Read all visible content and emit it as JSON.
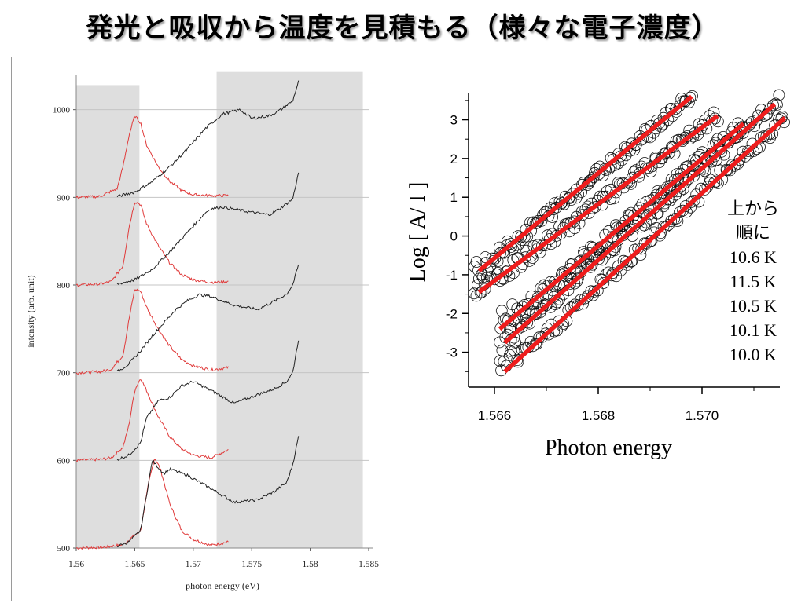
{
  "slide": {
    "title": "発光と吸収から温度を見積もる（様々な電子濃度）"
  },
  "chart_data": [
    {
      "type": "line",
      "xlabel": "photon energy (eV)",
      "ylabel": "intensity (arb. unit)",
      "xlim": [
        1.56,
        1.585
      ],
      "ylim": [
        500,
        1040
      ],
      "xticks": [
        1.56,
        1.565,
        1.57,
        1.575,
        1.58,
        1.585
      ],
      "xtick_labels": [
        "1.56",
        "1.565",
        "1.57",
        "1.575",
        "1.58",
        "1.585"
      ],
      "yticks": [
        500,
        600,
        700,
        800,
        900,
        1000
      ],
      "ytick_labels": [
        "500",
        "600",
        "700",
        "800",
        "900",
        "1000"
      ],
      "grid": "horizontal",
      "shaded_regions": [
        {
          "x": [
            1.56,
            1.5654
          ],
          "y": [
            500,
            1028
          ]
        },
        {
          "x": [
            1.572,
            1.5845
          ],
          "y": [
            500,
            1043
          ]
        }
      ],
      "emission_color": "#e03a3a",
      "absorption_color": "#222222",
      "shade_color": "#dedede",
      "emission_series": [
        {
          "offset": 500,
          "x": [
            1.56,
            1.5625,
            1.564,
            1.5655,
            1.5662,
            1.5667,
            1.5672,
            1.568,
            1.569,
            1.57,
            1.5715,
            1.573
          ],
          "y": [
            500,
            501,
            504,
            520,
            575,
            603,
            590,
            550,
            520,
            510,
            503,
            507
          ]
        },
        {
          "offset": 600,
          "x": [
            1.56,
            1.562,
            1.563,
            1.564,
            1.5645,
            1.565,
            1.5655,
            1.566,
            1.567,
            1.568,
            1.569,
            1.57,
            1.5715,
            1.573
          ],
          "y": [
            600,
            601,
            603,
            615,
            640,
            680,
            694,
            680,
            650,
            627,
            613,
            606,
            603,
            612
          ]
        },
        {
          "offset": 700,
          "x": [
            1.56,
            1.562,
            1.563,
            1.564,
            1.5645,
            1.565,
            1.5655,
            1.566,
            1.567,
            1.568,
            1.569,
            1.57,
            1.5715,
            1.573
          ],
          "y": [
            700,
            701,
            704,
            720,
            760,
            795,
            793,
            775,
            750,
            730,
            715,
            708,
            703,
            706
          ]
        },
        {
          "offset": 800,
          "x": [
            1.56,
            1.562,
            1.563,
            1.564,
            1.5645,
            1.565,
            1.5655,
            1.566,
            1.567,
            1.568,
            1.569,
            1.57,
            1.5715,
            1.573
          ],
          "y": [
            800,
            801,
            804,
            822,
            865,
            895,
            892,
            870,
            845,
            825,
            812,
            806,
            803,
            804
          ]
        },
        {
          "offset": 900,
          "x": [
            1.56,
            1.562,
            1.5635,
            1.564,
            1.5645,
            1.565,
            1.5655,
            1.566,
            1.567,
            1.568,
            1.569,
            1.57,
            1.5715,
            1.573
          ],
          "y": [
            900,
            901,
            910,
            935,
            970,
            993,
            985,
            960,
            935,
            918,
            908,
            903,
            902,
            902
          ]
        }
      ],
      "absorption_series": [
        {
          "offset": 500,
          "x": [
            1.5635,
            1.5645,
            1.5655,
            1.566,
            1.5665,
            1.567,
            1.5675,
            1.568,
            1.5695,
            1.5715,
            1.5735,
            1.5755,
            1.577,
            1.578,
            1.5785,
            1.579
          ],
          "y": [
            502,
            507,
            520,
            560,
            600,
            592,
            585,
            590,
            583,
            568,
            552,
            555,
            565,
            575,
            595,
            627
          ]
        },
        {
          "offset": 600,
          "x": [
            1.5635,
            1.5645,
            1.5655,
            1.566,
            1.567,
            1.568,
            1.569,
            1.57,
            1.5715,
            1.5735,
            1.5755,
            1.577,
            1.578,
            1.5785,
            1.579
          ],
          "y": [
            601,
            606,
            620,
            648,
            668,
            672,
            685,
            690,
            680,
            665,
            675,
            682,
            690,
            700,
            738
          ]
        },
        {
          "offset": 700,
          "x": [
            1.5635,
            1.5645,
            1.5655,
            1.5665,
            1.5675,
            1.5685,
            1.5695,
            1.5705,
            1.5715,
            1.5735,
            1.5755,
            1.577,
            1.578,
            1.5785,
            1.579
          ],
          "y": [
            701,
            710,
            725,
            742,
            757,
            772,
            782,
            789,
            787,
            777,
            772,
            782,
            790,
            800,
            823
          ]
        },
        {
          "offset": 800,
          "x": [
            1.5635,
            1.565,
            1.5665,
            1.568,
            1.5695,
            1.571,
            1.5715,
            1.5725,
            1.5745,
            1.5765,
            1.5775,
            1.5785,
            1.579
          ],
          "y": [
            801,
            806,
            818,
            838,
            860,
            882,
            887,
            889,
            884,
            880,
            888,
            898,
            928
          ]
        },
        {
          "offset": 900,
          "x": [
            1.5635,
            1.565,
            1.5665,
            1.568,
            1.5695,
            1.571,
            1.5725,
            1.574,
            1.575,
            1.5765,
            1.5775,
            1.5785,
            1.579
          ],
          "y": [
            901,
            906,
            918,
            935,
            955,
            978,
            995,
            1000,
            990,
            993,
            1000,
            1010,
            1032
          ]
        }
      ]
    },
    {
      "type": "scatter",
      "xlabel": "Photon energy",
      "ylabel": "Log [ A/ I ]",
      "xlim": [
        1.5655,
        1.5715
      ],
      "ylim": [
        -3.9,
        3.7
      ],
      "xticks": [
        1.566,
        1.568,
        1.57
      ],
      "xtick_labels": [
        "1.566",
        "1.568",
        "1.570"
      ],
      "yticks": [
        -3,
        -2,
        -1,
        0,
        1,
        2,
        3
      ],
      "ytick_labels": [
        "-3",
        "-2",
        "-1",
        "0",
        "1",
        "2",
        "3"
      ],
      "marker": "open-circle",
      "fit_color": "#ee1c1c",
      "legend_lines": [
        "上から",
        "順に",
        "10.6 K",
        "11.5 K",
        "10.5 K",
        "10.1 K",
        "10.0 K"
      ],
      "series": [
        {
          "name": "10.6 K",
          "x_range": [
            1.5656,
            1.5698
          ],
          "fit": [
            [
              1.5657,
              -0.9
            ],
            [
              1.5698,
              3.6
            ]
          ]
        },
        {
          "name": "11.5 K",
          "x_range": [
            1.5656,
            1.5703
          ],
          "fit": [
            [
              1.5657,
              -1.45
            ],
            [
              1.5703,
              3.1
            ]
          ]
        },
        {
          "name": "10.5 K",
          "x_range": [
            1.5661,
            1.5708
          ],
          "fit": [
            [
              1.5661,
              -2.4
            ],
            [
              1.5708,
              2.9
            ]
          ]
        },
        {
          "name": "10.1 K",
          "x_range": [
            1.5661,
            1.5715
          ],
          "fit": [
            [
              1.5662,
              -2.75
            ],
            [
              1.5714,
              3.4
            ]
          ]
        },
        {
          "name": "10.0 K",
          "x_range": [
            1.5661,
            1.5716
          ],
          "fit": [
            [
              1.5662,
              -3.5
            ],
            [
              1.5716,
              3.05
            ]
          ]
        }
      ]
    }
  ]
}
